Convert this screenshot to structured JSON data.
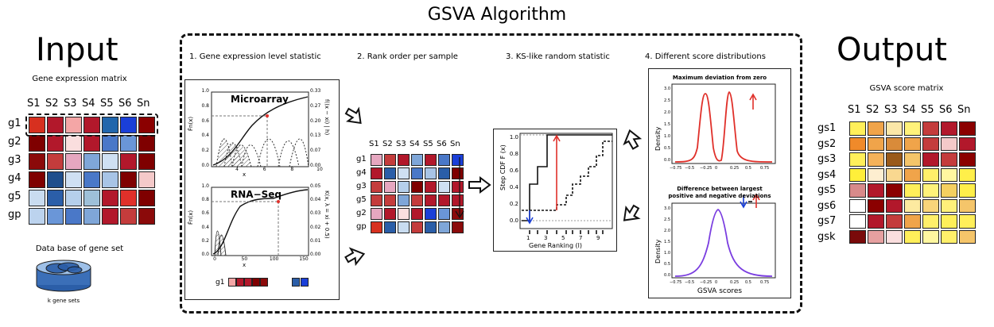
{
  "title": "GSVA Algorithm",
  "input": {
    "heading": "Input",
    "matrix_label": "Gene expression matrix",
    "columns": [
      "S1",
      "S2",
      "S3",
      "S4",
      "S5",
      "S6",
      "Sn"
    ],
    "rows": [
      "g1",
      "g2",
      "g3",
      "g4",
      "g5",
      "gp"
    ],
    "colors": [
      [
        "#d7301f",
        "#b2182b",
        "#f4a6a6",
        "#b2182b",
        "#2166ac",
        "#1a3fd8",
        "#8b0000"
      ],
      [
        "#7f0000",
        "#b2182b",
        "#fadede",
        "#b2182b",
        "#4a78c8",
        "#6a96d8",
        "#7f0000"
      ],
      [
        "#8b0a0a",
        "#c43c3c",
        "#e6a7c0",
        "#7fa6d8",
        "#cfe0f3",
        "#b2182b",
        "#7f0000"
      ],
      [
        "#7f0000",
        "#1f4e8c",
        "#cfe0f3",
        "#4a78c8",
        "#a8c4e6",
        "#7f0000",
        "#f4c9c9"
      ],
      [
        "#c9dcf0",
        "#2b5ea8",
        "#b5cfeb",
        "#9ec0d8",
        "#b2182b",
        "#e0302a",
        "#7f0000"
      ],
      [
        "#bcd3ee",
        "#6a96d8",
        "#4a78c8",
        "#7fa6d8",
        "#b2182b",
        "#c43c3c",
        "#8b0a0a"
      ]
    ],
    "db_label": "Data base of gene set",
    "db_caption": "k gene sets"
  },
  "steps": {
    "s1": "1. Gene expression level statistic",
    "s2": "2. Rank order per sample",
    "s3": "3. KS-like random statistic",
    "s4": "4. Different score distributions"
  },
  "panel1": {
    "top_label": "Microarray",
    "bottom_label": "RNA−Seq",
    "top_y_ticks": [
      "0.0",
      "0.2",
      "0.4",
      "0.6",
      "0.8",
      "1.0"
    ],
    "top_x_ticks": [
      "4",
      "6",
      "8",
      "10"
    ],
    "top_y2_ticks": [
      "0.00",
      "0.07",
      "0.13",
      "0.20",
      "0.27",
      "0.33"
    ],
    "bottom_y_ticks": [
      "0.0",
      "0.2",
      "0.4",
      "0.6",
      "0.8",
      "1.0"
    ],
    "bottom_x_ticks": [
      "0",
      "50",
      "100",
      "150"
    ],
    "bottom_y2_ticks": [
      "0.00",
      "0.01",
      "0.02",
      "0.03",
      "0.04",
      "0.05"
    ],
    "x_label": "x",
    "y_label": "F̂n(x)",
    "top_y2_label": "f((x − xi) | h)",
    "bottom_y2_label": "K(x, λ = xi + 0.5)",
    "g1_label": "g1",
    "g1_colors": [
      "#f4a6a6",
      "#b2182b",
      "#b2182b",
      "#7f0000",
      "#8b0a0a",
      "#2b5ea8",
      "#1a3fd8"
    ]
  },
  "rank": {
    "columns": [
      "S1",
      "S2",
      "S3",
      "S4",
      "S5",
      "S6",
      "Sn"
    ],
    "rows": [
      "g1",
      "g4",
      "g3",
      "g5",
      "g2",
      "gp"
    ],
    "colors": [
      [
        "#e6a7c0",
        "#c43c3c",
        "#b2182b",
        "#7fa6d8",
        "#b2182b",
        "#4a78c8",
        "#1a3fd8"
      ],
      [
        "#b2182b",
        "#2b5ea8",
        "#cfe0f3",
        "#4a78c8",
        "#a8c4e6",
        "#2b5ea8",
        "#7f0000"
      ],
      [
        "#c43c3c",
        "#e6a7c0",
        "#b5cfeb",
        "#7f0000",
        "#b2182b",
        "#cfe0f3",
        "#b2182b"
      ],
      [
        "#c43c3c",
        "#c43c3c",
        "#7fa6d8",
        "#c43c3c",
        "#b2182b",
        "#b2182b",
        "#b2182b"
      ],
      [
        "#e6a7c0",
        "#b2182b",
        "#fadede",
        "#b2182b",
        "#1a3fd8",
        "#6a96d8",
        "#8b0a0a"
      ],
      [
        "#d7301f",
        "#2b5ea8",
        "#c9dcf0",
        "#c43c3c",
        "#2b5ea8",
        "#7fa6d8",
        "#8b0a0a"
      ]
    ]
  },
  "ks": {
    "y_label": "Step CDF F (x)",
    "x_label": "Gene Ranking (l)",
    "y_ticks": [
      "0.0",
      "0.2",
      "0.4",
      "0.6",
      "0.8",
      "1.0"
    ],
    "x_ticks": [
      "1",
      "3",
      "5",
      "7",
      "9"
    ]
  },
  "dist": {
    "top_title": "Maximum deviation from zero",
    "bottom_title_1": "Difference between largest",
    "bottom_title_2": "positive and negative deviations",
    "y_label": "Density",
    "top_y_ticks": [
      "0.0",
      "0.5",
      "1.0",
      "1.5",
      "2.0",
      "2.5",
      "3.0"
    ],
    "bottom_y_ticks": [
      "0.0",
      "0.5",
      "1.0",
      "1.5",
      "2.0",
      "2.5",
      "3.0"
    ],
    "x_ticks": [
      "−0.75",
      "−0.5",
      "−0.25",
      "0",
      "0.25",
      "0.5",
      "0.75"
    ],
    "x_label": "GSVA scores",
    "top_color": "#e0302a",
    "bottom_color": "#7a3de0"
  },
  "output": {
    "heading": "Output",
    "matrix_label": "GSVA score matrix",
    "columns": [
      "S1",
      "S2",
      "S3",
      "S4",
      "S5",
      "S6",
      "Sn"
    ],
    "rows": [
      "gs1",
      "gs2",
      "gs3",
      "gs4",
      "gs5",
      "gs6",
      "gs7",
      "gsk"
    ],
    "colors": [
      [
        "#ffef5a",
        "#f0a44a",
        "#fbe7a8",
        "#fff27a",
        "#c43c3c",
        "#b2182b",
        "#8b0000"
      ],
      [
        "#f08a2a",
        "#f0a44a",
        "#d98b3a",
        "#f0a44a",
        "#c43c3c",
        "#f4c9c9",
        "#b2182b"
      ],
      [
        "#ffef5a",
        "#f5b25a",
        "#9a5a1a",
        "#f5c56a",
        "#b2182b",
        "#c43c3c",
        "#8b0000"
      ],
      [
        "#ffef3a",
        "#fdeed0",
        "#f9d890",
        "#f0a44a",
        "#ffef6a",
        "#fff7a0",
        "#ffef4a"
      ],
      [
        "#d88a8a",
        "#b2182b",
        "#8b0000",
        "#ffef5a",
        "#fff27a",
        "#f5d060",
        "#ffef4a"
      ],
      [
        "#fff",
        "#8b0000",
        "#b2182b",
        "#fdeaa0",
        "#f9d47a",
        "#fff07a",
        "#f5c56a"
      ],
      [
        "#fff",
        "#b2182b",
        "#c43c3c",
        "#f0a44a",
        "#ffef6a",
        "#ffef5a",
        "#ffef5a"
      ],
      [
        "#7a0a0a",
        "#e6a0a0",
        "#fadede",
        "#ffef5a",
        "#fff7a0",
        "#ffef6a",
        "#f5c56a"
      ]
    ]
  }
}
